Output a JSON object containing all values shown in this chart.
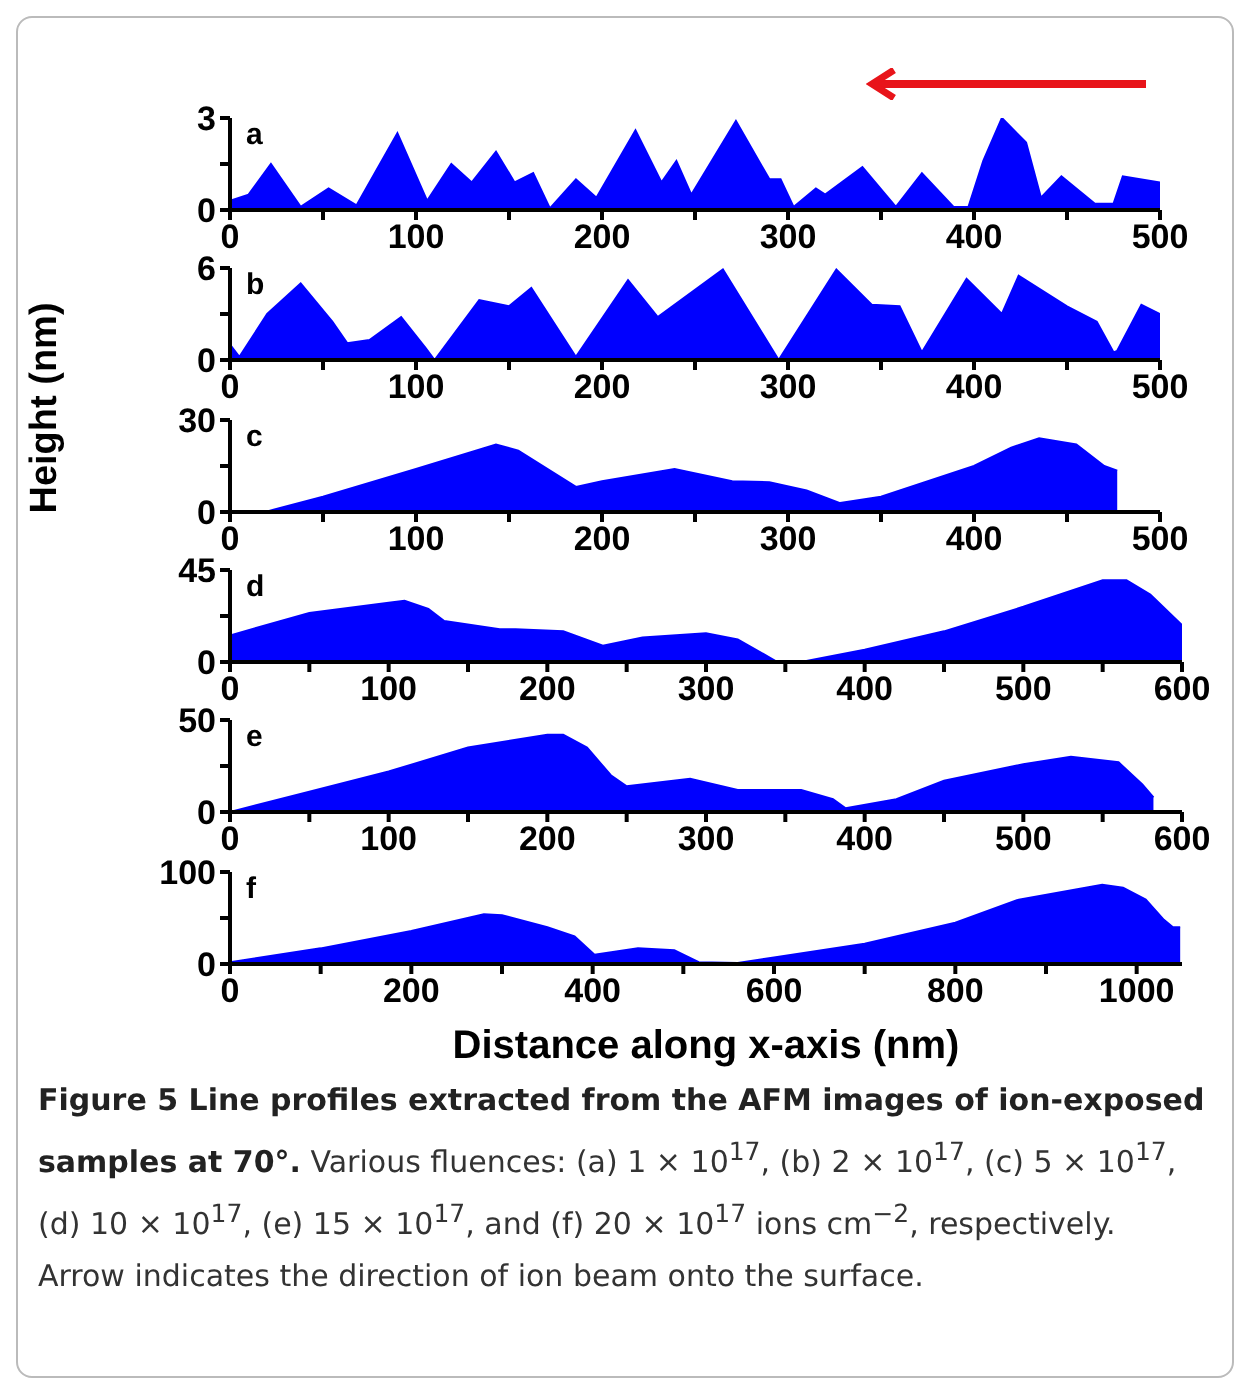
{
  "chart_data": [
    {
      "type": "area",
      "annotations": [
        "a"
      ],
      "x": [
        0,
        10,
        22,
        38,
        53,
        68,
        90,
        106,
        119,
        130,
        143,
        153,
        163,
        172,
        186,
        197,
        218,
        232,
        240,
        248,
        272,
        290,
        296,
        303,
        315,
        320,
        340,
        358,
        372,
        389,
        397,
        405,
        415,
        428,
        436,
        447,
        465,
        475,
        480,
        500
      ],
      "series": [
        {
          "color": "#0000ff",
          "values": [
            0.3,
            0.5,
            1.5,
            0.1,
            0.7,
            0.15,
            2.5,
            0.3,
            1.5,
            0.9,
            1.9,
            0.9,
            1.2,
            0.05,
            1.0,
            0.4,
            2.6,
            0.9,
            1.6,
            0.5,
            2.9,
            1.0,
            1.0,
            0.1,
            0.7,
            0.5,
            1.4,
            0.1,
            1.2,
            0.1,
            0.1,
            1.6,
            3.0,
            2.2,
            0.4,
            1.1,
            0.2,
            0.2,
            1.1,
            0.9
          ]
        }
      ],
      "xlim": [
        0,
        500
      ],
      "xticks": [
        0,
        {
          "value": 50,
          "label": null
        },
        100,
        {
          "value": 150,
          "label": null
        },
        200,
        {
          "value": 250,
          "label": null
        },
        300,
        {
          "value": 350,
          "label": null
        },
        400,
        {
          "value": 450,
          "label": null
        },
        500
      ],
      "ylim": [
        0,
        3
      ],
      "yticks": [
        0,
        {
          "value": 1.5,
          "label": null
        },
        3
      ],
      "grid": false
    },
    {
      "type": "area",
      "annotations": [
        "b"
      ],
      "x": [
        0,
        5,
        20,
        38,
        55,
        63,
        75,
        92,
        105,
        110,
        134,
        150,
        162,
        186,
        214,
        230,
        265,
        295,
        326,
        345,
        360,
        372,
        396,
        415,
        424,
        450,
        466,
        475,
        477,
        490,
        500
      ],
      "series": [
        {
          "color": "#0000ff",
          "values": [
            1.0,
            0.2,
            3.0,
            5.0,
            2.5,
            1.1,
            1.3,
            2.8,
            0.8,
            0,
            3.9,
            3.5,
            4.7,
            0.2,
            5.2,
            2.8,
            5.9,
            0,
            5.9,
            3.6,
            3.5,
            0.5,
            5.3,
            3.0,
            5.5,
            3.5,
            2.5,
            0.5,
            0.6,
            3.6,
            3.0
          ]
        }
      ],
      "xlim": [
        0,
        500
      ],
      "xticks": [
        0,
        {
          "value": 50,
          "label": null
        },
        100,
        {
          "value": 150,
          "label": null
        },
        200,
        {
          "value": 250,
          "label": null
        },
        300,
        {
          "value": 350,
          "label": null
        },
        400,
        {
          "value": 450,
          "label": null
        },
        500
      ],
      "ylim": [
        0,
        6
      ],
      "yticks": [
        0,
        {
          "value": 3,
          "label": null
        },
        6
      ],
      "grid": false
    },
    {
      "type": "area",
      "annotations": [
        "c"
      ],
      "ylabel": "Height (nm)",
      "x": [
        0,
        20,
        50,
        100,
        143,
        155,
        186,
        200,
        239,
        270,
        290,
        310,
        328,
        350,
        400,
        420,
        435,
        455,
        470,
        477
      ],
      "series": [
        {
          "color": "#0000ff",
          "values": [
            0,
            0.2,
            5,
            14,
            22,
            20,
            8.2,
            10,
            14,
            10,
            9.7,
            7,
            2.9,
            5,
            15,
            21,
            24,
            22,
            15,
            13.5
          ]
        }
      ],
      "xlim": [
        0,
        500
      ],
      "xticks": [
        0,
        {
          "value": 50,
          "label": null
        },
        100,
        {
          "value": 150,
          "label": null
        },
        200,
        {
          "value": 250,
          "label": null
        },
        300,
        {
          "value": 350,
          "label": null
        },
        400,
        {
          "value": 450,
          "label": null
        },
        500
      ],
      "ylim": [
        0,
        30
      ],
      "yticks": [
        0,
        {
          "value": 15,
          "label": null
        },
        30
      ],
      "grid": false
    },
    {
      "type": "area",
      "annotations": [
        "d"
      ],
      "x": [
        0,
        50,
        100,
        110,
        125,
        135,
        170,
        180,
        210,
        235,
        260,
        300,
        320,
        345,
        360,
        400,
        450,
        500,
        550,
        565,
        580,
        600
      ],
      "series": [
        {
          "color": "#0000ff",
          "values": [
            13,
            24,
            29,
            30,
            26,
            20,
            16,
            16,
            15,
            8,
            12,
            14,
            11,
            0,
            0,
            6,
            15,
            27,
            40,
            40,
            33,
            18
          ]
        }
      ],
      "xlim": [
        0,
        600
      ],
      "xticks": [
        0,
        {
          "value": 50,
          "label": null
        },
        100,
        {
          "value": 150,
          "label": null
        },
        200,
        {
          "value": 250,
          "label": null
        },
        300,
        {
          "value": 350,
          "label": null
        },
        400,
        {
          "value": 450,
          "label": null
        },
        500,
        {
          "value": 550,
          "label": null
        },
        600
      ],
      "ylim": [
        0,
        45
      ],
      "yticks": [
        0,
        {
          "value": 22.5,
          "label": null
        },
        45
      ],
      "grid": false
    },
    {
      "type": "area",
      "annotations": [
        "e"
      ],
      "x": [
        0,
        50,
        100,
        150,
        200,
        210,
        225,
        240,
        250,
        290,
        320,
        360,
        380,
        388,
        420,
        450,
        500,
        530,
        560,
        575,
        582
      ],
      "series": [
        {
          "color": "#0000ff",
          "values": [
            0,
            11,
            22,
            35,
            42,
            42,
            35,
            20,
            14,
            18,
            12,
            12,
            7,
            2,
            7,
            17,
            26,
            30,
            27,
            15,
            8
          ]
        }
      ],
      "xlim": [
        0,
        600
      ],
      "xticks": [
        0,
        {
          "value": 50,
          "label": null
        },
        100,
        {
          "value": 150,
          "label": null
        },
        200,
        {
          "value": 250,
          "label": null
        },
        300,
        {
          "value": 350,
          "label": null
        },
        400,
        {
          "value": 450,
          "label": null
        },
        500,
        {
          "value": 550,
          "label": null
        },
        600
      ],
      "ylim": [
        0,
        50
      ],
      "yticks": [
        0,
        {
          "value": 25,
          "label": null
        },
        50
      ],
      "grid": false
    },
    {
      "type": "area",
      "annotations": [
        "f",
        "Figure 5 Line profiles extracted from the AFM images of ion-exposed samples at 70°.",
        "Various fluences: (a) 1 × 10$^{17}$, (b) 2 × 10$^{17}$, (c) 5 × 10$^{17}$, (d) 10 × 10$^{17}$, (e) 15 × 10$^{17}$, and (f) 20 × 10$^{17}$ ions cm$^{−2}$, respectively. Arrow indicates the direction of ion beam onto the surface."
      ],
      "xlabel": "Distance along x-axis (nm)",
      "x": [
        0,
        100,
        200,
        280,
        300,
        350,
        380,
        402,
        450,
        490,
        517,
        560,
        600,
        700,
        800,
        870,
        962,
        985,
        1010,
        1030,
        1040,
        1048
      ],
      "series": [
        {
          "color": "#0000ff",
          "values": [
            2,
            17,
            36,
            54,
            53,
            40,
            30,
            10,
            17,
            15,
            2,
            1,
            7,
            22,
            45,
            70,
            86,
            83,
            70,
            48,
            40,
            40
          ]
        }
      ],
      "xlim": [
        0,
        1050
      ],
      "xticks": [
        0,
        {
          "value": 100,
          "label": null
        },
        200,
        {
          "value": 300,
          "label": null
        },
        400,
        {
          "value": 500,
          "label": null
        },
        600,
        {
          "value": 700,
          "label": null
        },
        800,
        {
          "value": 900,
          "label": null
        },
        1000
      ],
      "ylim": [
        0,
        100
      ],
      "yticks": [
        0,
        {
          "value": 50,
          "label": null
        },
        100
      ],
      "grid": false
    }
  ]
}
